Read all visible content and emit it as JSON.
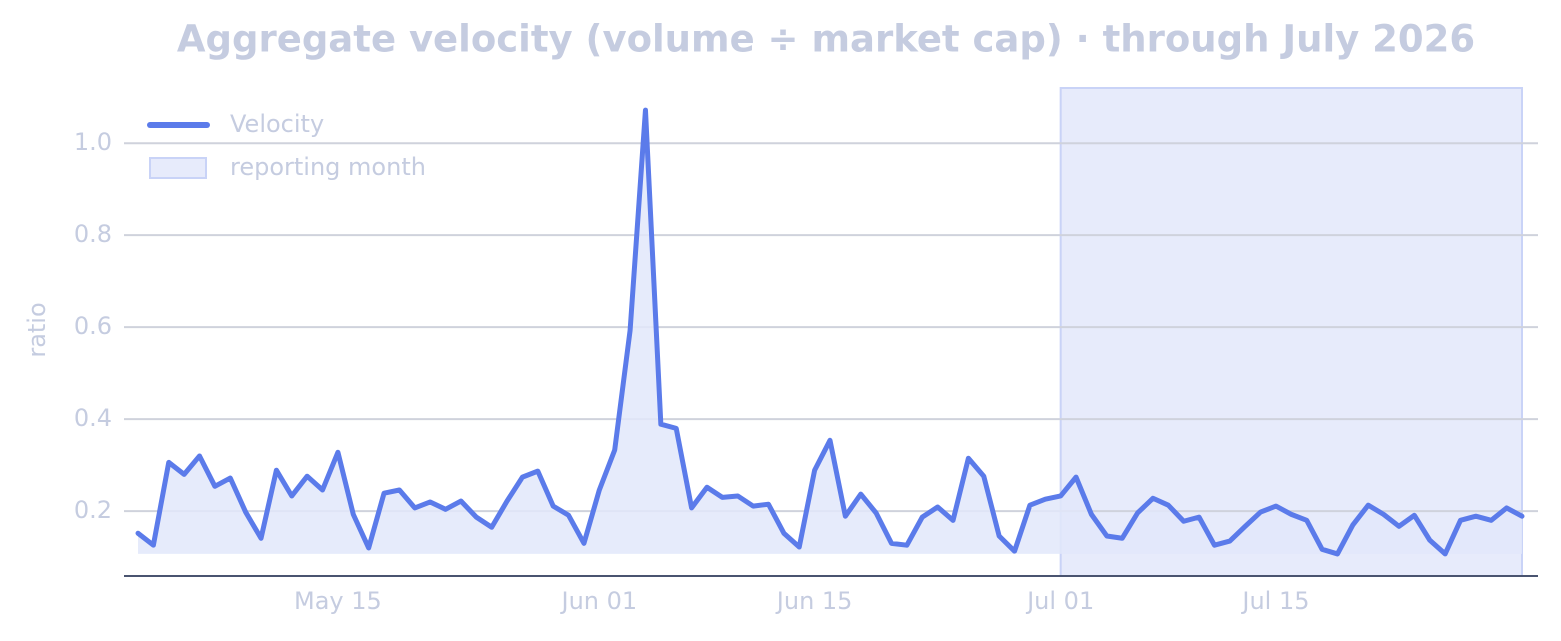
{
  "chart_data": {
    "type": "line",
    "title": "Aggregate velocity (volume ÷ market cap) · through July 2026",
    "y_label": "ratio",
    "x": [
      "May 02",
      "May 03",
      "May 04",
      "May 05",
      "May 06",
      "May 07",
      "May 08",
      "May 09",
      "May 10",
      "May 11",
      "May 12",
      "May 13",
      "May 14",
      "May 15",
      "May 16",
      "May 17",
      "May 18",
      "May 19",
      "May 20",
      "May 21",
      "May 22",
      "May 23",
      "May 24",
      "May 25",
      "May 26",
      "May 27",
      "May 28",
      "May 29",
      "May 30",
      "May 31",
      "Jun 01",
      "Jun 02",
      "Jun 03",
      "Jun 04",
      "Jun 05",
      "Jun 06",
      "Jun 07",
      "Jun 08",
      "Jun 09",
      "Jun 10",
      "Jun 11",
      "Jun 12",
      "Jun 13",
      "Jun 14",
      "Jun 15",
      "Jun 16",
      "Jun 17",
      "Jun 18",
      "Jun 19",
      "Jun 20",
      "Jun 21",
      "Jun 22",
      "Jun 23",
      "Jun 24",
      "Jun 25",
      "Jun 26",
      "Jun 27",
      "Jun 28",
      "Jun 29",
      "Jun 30",
      "Jul 01",
      "Jul 02",
      "Jul 03",
      "Jul 04",
      "Jul 05",
      "Jul 06",
      "Jul 07",
      "Jul 08",
      "Jul 09",
      "Jul 10",
      "Jul 11",
      "Jul 12",
      "Jul 13",
      "Jul 14",
      "Jul 15",
      "Jul 16",
      "Jul 17",
      "Jul 18",
      "Jul 19",
      "Jul 20",
      "Jul 21",
      "Jul 22",
      "Jul 23",
      "Jul 24",
      "Jul 25",
      "Jul 26",
      "Jul 27",
      "Jul 28",
      "Jul 29",
      "Jul 30",
      "Jul 31"
    ],
    "series": [
      {
        "name": "Velocity",
        "color": "#5b7bea",
        "fill": "#e2e7fa",
        "values": [
          0.152,
          0.126,
          0.306,
          0.28,
          0.32,
          0.254,
          0.272,
          0.198,
          0.141,
          0.289,
          0.233,
          0.276,
          0.246,
          0.328,
          0.193,
          0.12,
          0.239,
          0.246,
          0.207,
          0.22,
          0.204,
          0.222,
          0.187,
          0.165,
          0.222,
          0.274,
          0.287,
          0.211,
          0.191,
          0.13,
          0.246,
          0.333,
          0.593,
          1.072,
          0.389,
          0.38,
          0.207,
          0.252,
          0.23,
          0.233,
          0.211,
          0.215,
          0.152,
          0.122,
          0.289,
          0.354,
          0.189,
          0.237,
          0.196,
          0.13,
          0.126,
          0.187,
          0.209,
          0.18,
          0.315,
          0.276,
          0.146,
          0.113,
          0.213,
          0.226,
          0.233,
          0.274,
          0.193,
          0.146,
          0.141,
          0.196,
          0.228,
          0.213,
          0.178,
          0.187,
          0.126,
          0.135,
          0.167,
          0.198,
          0.211,
          0.193,
          0.18,
          0.117,
          0.107,
          0.17,
          0.213,
          0.193,
          0.167,
          0.191,
          0.137,
          0.107,
          0.18,
          0.189,
          0.18,
          0.207,
          0.189
        ]
      }
    ],
    "highlight": {
      "label": "reporting month",
      "start": "Jul 01",
      "end": "Jul 31",
      "color": "#c9d3f7"
    },
    "ylim": [
      0.059,
      1.12
    ],
    "yticks": [
      0.2,
      0.4,
      0.6,
      0.8,
      {
        "value": 1,
        "label": "1.0"
      }
    ],
    "xticks": [
      "May 15",
      "Jun 01",
      "Jun 15",
      "Jul 01",
      "Jul 15"
    ],
    "grid": true,
    "legend": "upper left"
  }
}
